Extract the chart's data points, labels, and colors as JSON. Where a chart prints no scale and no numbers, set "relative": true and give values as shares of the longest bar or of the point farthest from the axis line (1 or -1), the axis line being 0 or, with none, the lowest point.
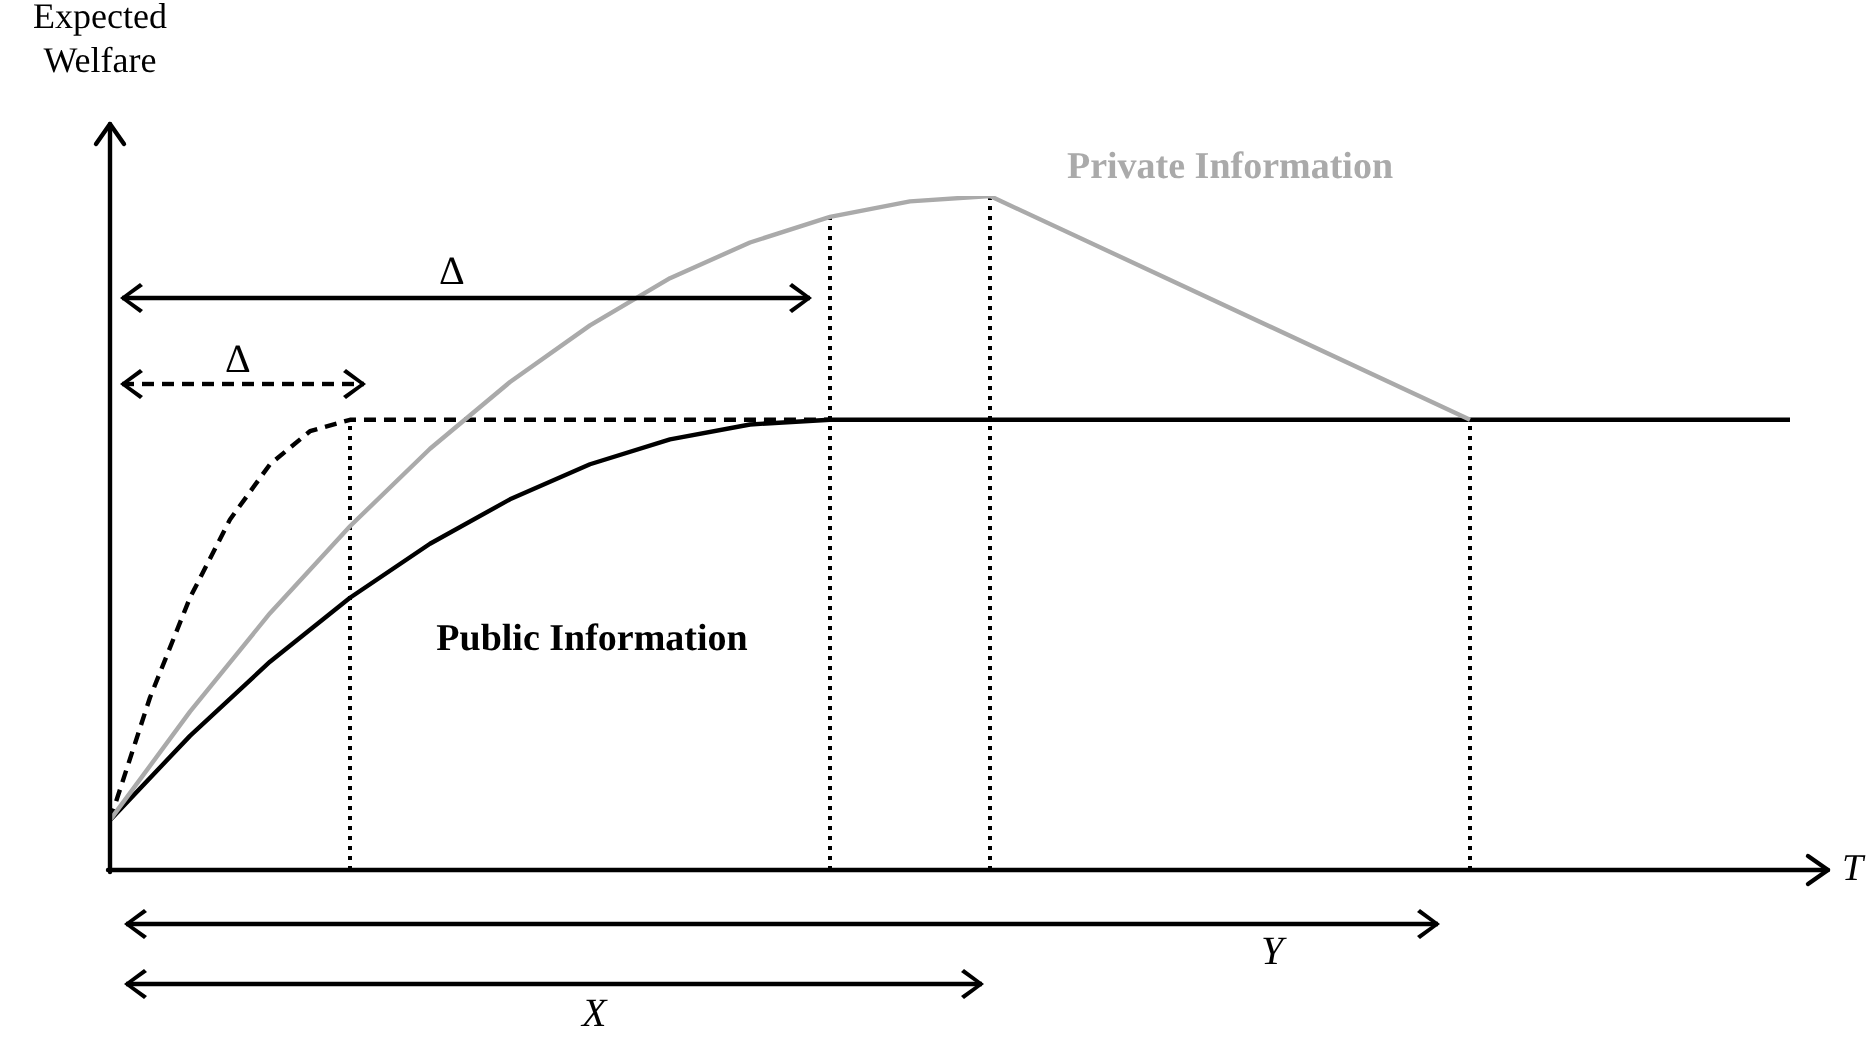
{
  "chart_data": {
    "type": "line",
    "relative": true,
    "xlabel": "T",
    "ylabel": "Expected Welfare",
    "marker": "none",
    "categories": [
      null,
      null,
      null,
      null,
      null,
      null,
      null,
      null,
      null,
      null,
      null,
      null,
      null,
      null,
      null,
      null,
      null,
      null,
      null,
      null,
      null,
      null,
      null,
      null,
      null,
      null,
      null,
      null,
      null,
      null,
      null,
      null,
      null,
      null,
      null,
      null,
      null,
      null,
      null,
      null,
      null,
      null,
      null
    ],
    "series": [
      {
        "name": "Private Information",
        "color": "#aaaaaa",
        "line_style": "solid",
        "values": [
          0.074,
          null,
          0.235,
          null,
          0.381,
          null,
          0.51,
          null,
          0.625,
          null,
          0.724,
          null,
          0.808,
          null,
          0.878,
          null,
          0.931,
          null,
          0.969,
          null,
          0.992,
          null,
          1,
          null,
          null,
          null,
          null,
          null,
          null,
          null,
          null,
          null,
          null,
          null,
          0.668,
          null,
          null,
          null,
          null,
          null,
          null,
          null,
          null
        ]
      },
      {
        "name": "Public Information",
        "color": "#000000",
        "line_style": "solid",
        "values": [
          0.074,
          null,
          0.199,
          null,
          0.309,
          null,
          0.404,
          null,
          0.484,
          null,
          0.55,
          null,
          0.602,
          null,
          0.639,
          null,
          0.661,
          null,
          0.668,
          null,
          null,
          null,
          null,
          null,
          null,
          null,
          null,
          null,
          null,
          null,
          null,
          null,
          null,
          null,
          null,
          null,
          null,
          null,
          null,
          null,
          null,
          null,
          0.668
        ]
      },
      {
        "color": "#000000",
        "line_style": "dashed",
        "values": [
          0.074,
          0.256,
          0.404,
          0.52,
          0.602,
          0.651,
          0.668,
          null,
          null,
          null,
          null,
          null,
          null,
          null,
          null,
          null,
          null,
          null,
          0.668,
          null,
          null,
          null,
          null,
          null,
          null,
          null,
          null,
          null,
          null,
          null,
          null,
          null,
          null,
          null,
          null,
          null,
          null,
          null,
          null,
          null,
          null,
          null,
          null
        ]
      }
    ],
    "annotations": [
      "Δ",
      "Δ",
      "Y",
      "X"
    ]
  }
}
